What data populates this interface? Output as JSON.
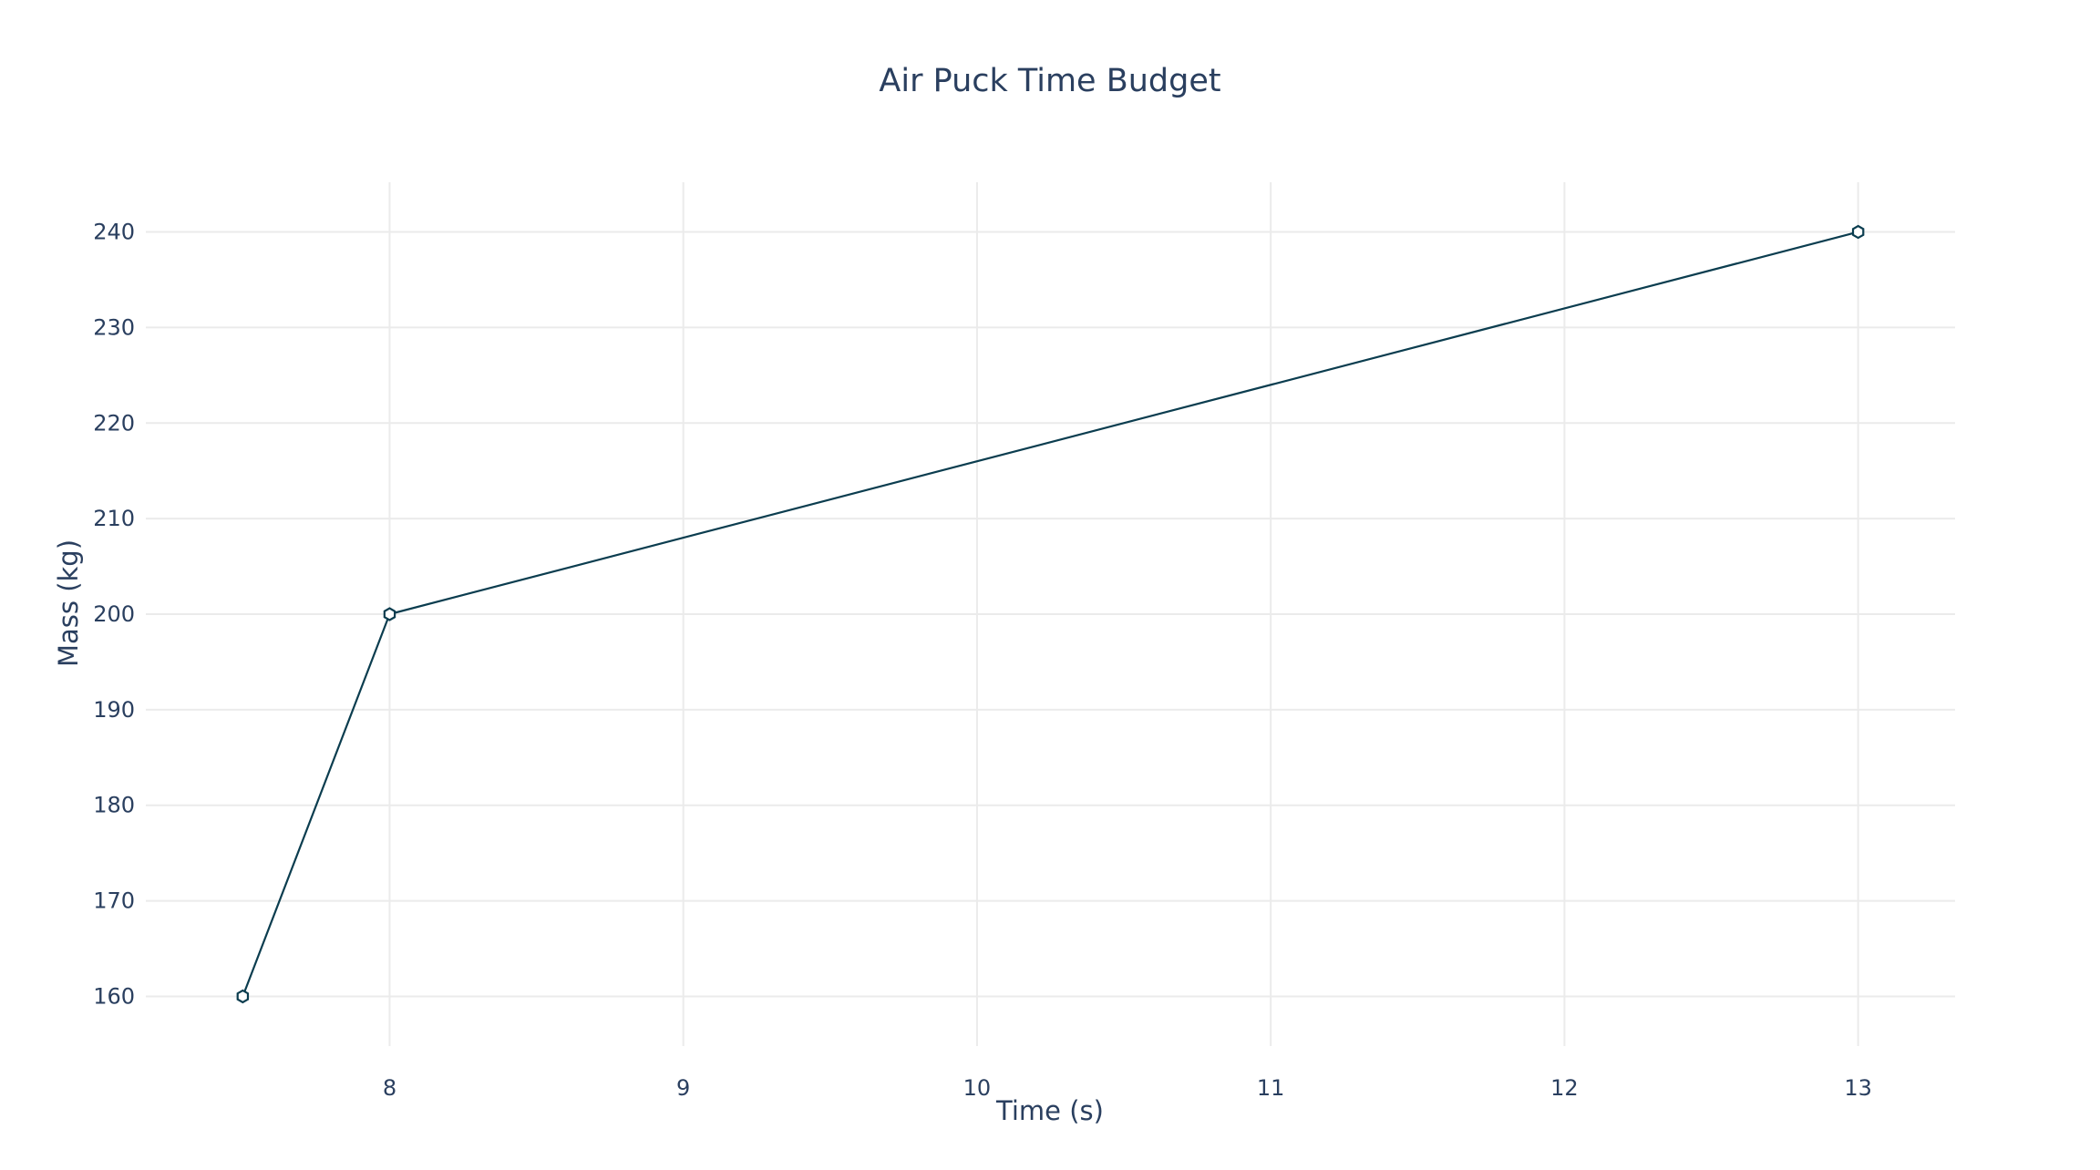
{
  "chart_data": {
    "type": "line",
    "title": "Air Puck Time Budget",
    "xlabel": "Time (s)",
    "ylabel": "Mass (kg)",
    "x": [
      7.5,
      8,
      13
    ],
    "series": [
      {
        "values": [
          160,
          200,
          240
        ],
        "color": "#0b3d4f",
        "marker": "hexagon-open"
      }
    ],
    "x_ticks": [
      8,
      9,
      10,
      11,
      12,
      13
    ],
    "y_ticks": [
      160,
      170,
      180,
      190,
      200,
      210,
      220,
      230,
      240
    ],
    "xlim": [
      7.17,
      13.33
    ],
    "ylim": [
      154.8,
      245.2
    ],
    "grid": true,
    "legend": "none",
    "background": "#ffffff",
    "grid_color": "#ebebeb",
    "text_color": "#2a3f5f"
  }
}
